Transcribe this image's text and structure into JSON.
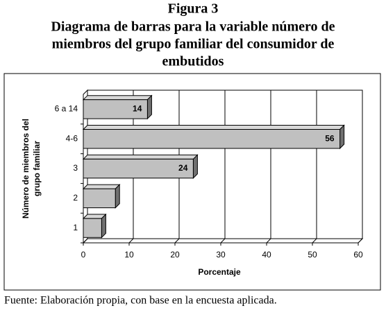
{
  "figure_label": "Figura 3",
  "chart_data": {
    "type": "bar",
    "orientation": "horizontal",
    "title": [
      "Diagrama de barras para la variable número de",
      "miembros del grupo familiar del consumidor de",
      "embutidos"
    ],
    "categories": [
      "1",
      "2",
      "3",
      "4-6",
      "6 a 14"
    ],
    "values": [
      4,
      7,
      24,
      56,
      14
    ],
    "value_labels": [
      null,
      null,
      "24",
      "56",
      "14"
    ],
    "color": "#c0c0c0",
    "xlim": [
      0,
      60
    ],
    "xticks": [
      0,
      10,
      20,
      30,
      40,
      50,
      60
    ],
    "xlabel": "Porcentaje",
    "ylabel": [
      "Número de miembros del",
      "grupo familiar"
    ],
    "grid": true
  },
  "source": "Fuente: Elaboración propia, con base en la encuesta aplicada."
}
